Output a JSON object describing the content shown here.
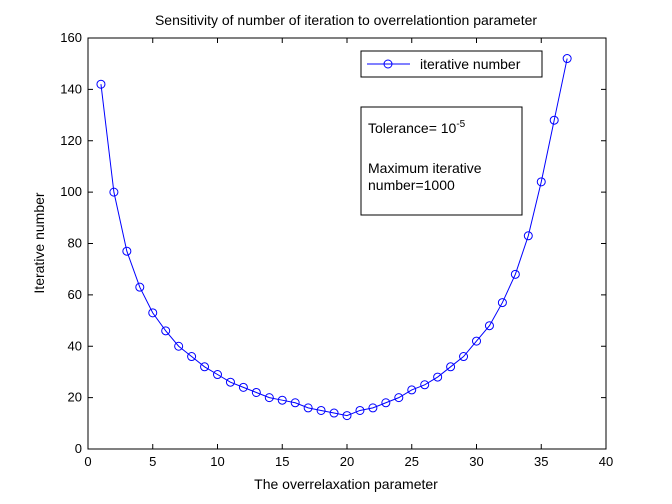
{
  "chart_data": {
    "type": "line",
    "title": "Sensitivity of number of iteration to overrelationtion parameter",
    "xlabel": "The overrelaxation parameter",
    "ylabel": "Iterative number",
    "xlim": [
      0,
      40
    ],
    "ylim": [
      0,
      160
    ],
    "xticks": [
      0,
      5,
      10,
      15,
      20,
      25,
      30,
      35,
      40
    ],
    "yticks": [
      0,
      20,
      40,
      60,
      80,
      100,
      120,
      140,
      160
    ],
    "grid": false,
    "legend_position": "top-right",
    "series": [
      {
        "name": "iterative number",
        "color": "#0000ff",
        "marker": "circle",
        "x": [
          1,
          2,
          3,
          4,
          5,
          6,
          7,
          8,
          9,
          10,
          11,
          12,
          13,
          14,
          15,
          16,
          17,
          18,
          19,
          20,
          21,
          22,
          23,
          24,
          25,
          26,
          27,
          28,
          29,
          30,
          31,
          32,
          33,
          34,
          35,
          36,
          37
        ],
        "y": [
          142,
          100,
          77,
          63,
          53,
          46,
          40,
          36,
          32,
          29,
          26,
          24,
          22,
          20,
          19,
          18,
          16,
          15,
          14,
          13,
          15,
          16,
          18,
          20,
          23,
          25,
          28,
          32,
          36,
          42,
          48,
          57,
          68,
          83,
          104,
          128,
          152
        ]
      }
    ],
    "annotation": {
      "tolerance_label": "Tolerance= 10",
      "tolerance_exponent": "-5",
      "max_line1": "Maximum iterative",
      "max_line2": "number=1000"
    }
  }
}
